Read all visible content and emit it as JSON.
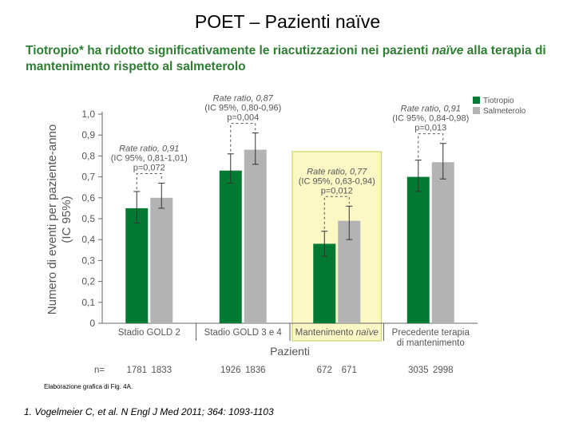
{
  "header": {
    "title": "POET – Pazienti naïve",
    "subtitle_before": "Tiotropio* ha ridotto significativamente le riacutizzazioni nei pazienti ",
    "subtitle_em": "naïve",
    "subtitle_after": " alla terapia di mantenimento rispetto al salmeterolo"
  },
  "chart_data": {
    "type": "bar",
    "ylabel": "Numero di eventi per paziente-anno (IC 95%)",
    "xlabel": "Pazienti",
    "ylim": [
      0,
      1.0
    ],
    "yticks": [
      "0",
      "0,1",
      "0,2",
      "0,3",
      "0,4",
      "0,5",
      "0,6",
      "0,7",
      "0,8",
      "0,9",
      "1,0"
    ],
    "categories": [
      "Stadio GOLD 2",
      "Stadio GOLD 3 e 4",
      "Mantenimento naïve",
      "Precedente terapia di mantenimento"
    ],
    "category_lines": [
      [
        {
          "text": "Stadio GOLD 2",
          "italic": false
        }
      ],
      [
        {
          "text": "Stadio GOLD 3 e 4",
          "italic": false
        }
      ],
      [
        {
          "text": "Mantenimento ",
          "italic": false
        },
        {
          "text": "naïve",
          "italic": true
        }
      ],
      [
        {
          "text": "Precedente terapia",
          "italic": false
        },
        {
          "text": "di mantenimento",
          "italic": false
        }
      ]
    ],
    "highlight_category": 2,
    "series": [
      {
        "name": "Tiotropio",
        "color": "#007a33",
        "values": [
          0.55,
          0.73,
          0.38,
          0.7
        ],
        "ci_low": [
          0.48,
          0.67,
          0.32,
          0.63
        ],
        "ci_high": [
          0.63,
          0.81,
          0.44,
          0.78
        ]
      },
      {
        "name": "Salmeterolo",
        "color": "#b3b3b3",
        "values": [
          0.6,
          0.83,
          0.49,
          0.77
        ],
        "ci_low": [
          0.55,
          0.76,
          0.4,
          0.69
        ],
        "ci_high": [
          0.67,
          0.91,
          0.56,
          0.86
        ]
      }
    ],
    "annotations": [
      {
        "line1": "Rate ratio, 0,91",
        "line2": "(IC 95%, 0,81-1,01)",
        "line3": "p=0,072"
      },
      {
        "line1": "Rate ratio, 0,87",
        "line2": "(IC 95%, 0,80-0,96)",
        "line3": "p=0,004"
      },
      {
        "line1": "Rate ratio, 0,77",
        "line2": "(IC 95%, 0,63-0,94)",
        "line3": "p=0,012"
      },
      {
        "line1": "Rate ratio, 0,91",
        "line2": "(IC 95%, 0,84-0,98)",
        "line3": "p=0,013"
      }
    ],
    "n_label": "n=",
    "n_values": [
      [
        "1781",
        "1833"
      ],
      [
        "1926",
        "1836"
      ],
      [
        "672",
        "671"
      ],
      [
        "3035",
        "2998"
      ]
    ],
    "legend": {
      "placement": "top-right",
      "entries": [
        "Tiotropio",
        "Salmeterolo"
      ]
    }
  },
  "footer": {
    "credit": "Elaborazione grafica di Fig. 4A.",
    "reference": "1. Vogelmeier C, et al. N Engl J Med 2011; 364: 1093-1103"
  }
}
